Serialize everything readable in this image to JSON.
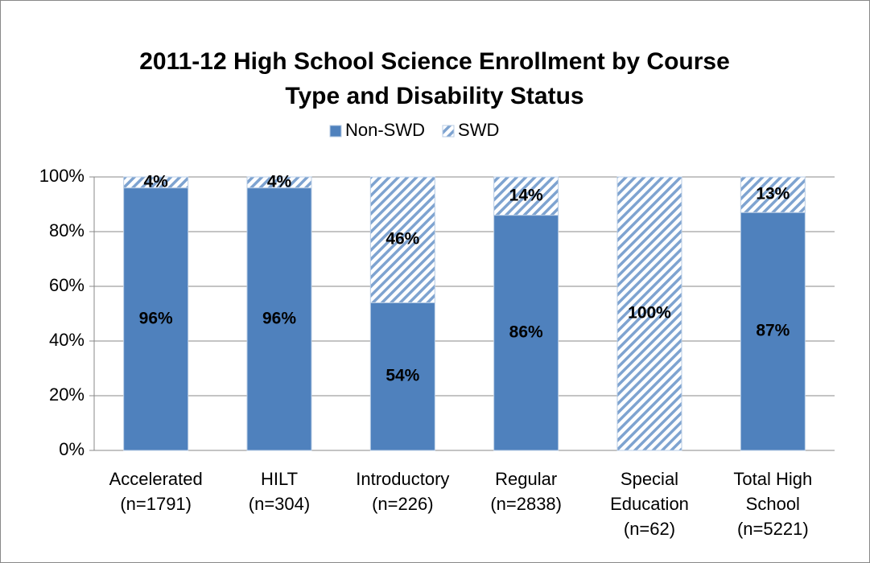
{
  "chart_data": {
    "type": "stacked_bar",
    "title": "2011-12 High School Science Enrollment by Course\nType and Disability Status",
    "categories": [
      "Accelerated\n(n=1791)",
      "HILT\n(n=304)",
      "Introductory\n(n=226)",
      "Regular\n(n=2838)",
      "Special\nEducation\n(n=62)",
      "Total High\nSchool\n(n=5221)"
    ],
    "series": [
      {
        "name": "Non-SWD",
        "color": "#4f81bd",
        "pattern": "solid",
        "values": [
          96,
          96,
          54,
          86,
          0,
          87
        ],
        "value_labels": [
          "96%",
          "96%",
          "54%",
          "86%",
          null,
          "87%"
        ]
      },
      {
        "name": "SWD",
        "color": "#7ea3d0",
        "pattern": "hatch",
        "values": [
          4,
          4,
          46,
          14,
          100,
          13
        ],
        "value_labels": [
          "4%",
          "4%",
          "46%",
          "14%",
          "100%",
          "13%"
        ]
      }
    ],
    "ylim": [
      0,
      100
    ],
    "yticks": [
      {
        "value": 0,
        "label": "0%"
      },
      {
        "value": 20,
        "label": "20%"
      },
      {
        "value": 40,
        "label": "40%"
      },
      {
        "value": 60,
        "label": "60%"
      },
      {
        "value": 80,
        "label": "80%"
      },
      {
        "value": 100,
        "label": "100%"
      }
    ],
    "grid": true,
    "legend": "top"
  }
}
